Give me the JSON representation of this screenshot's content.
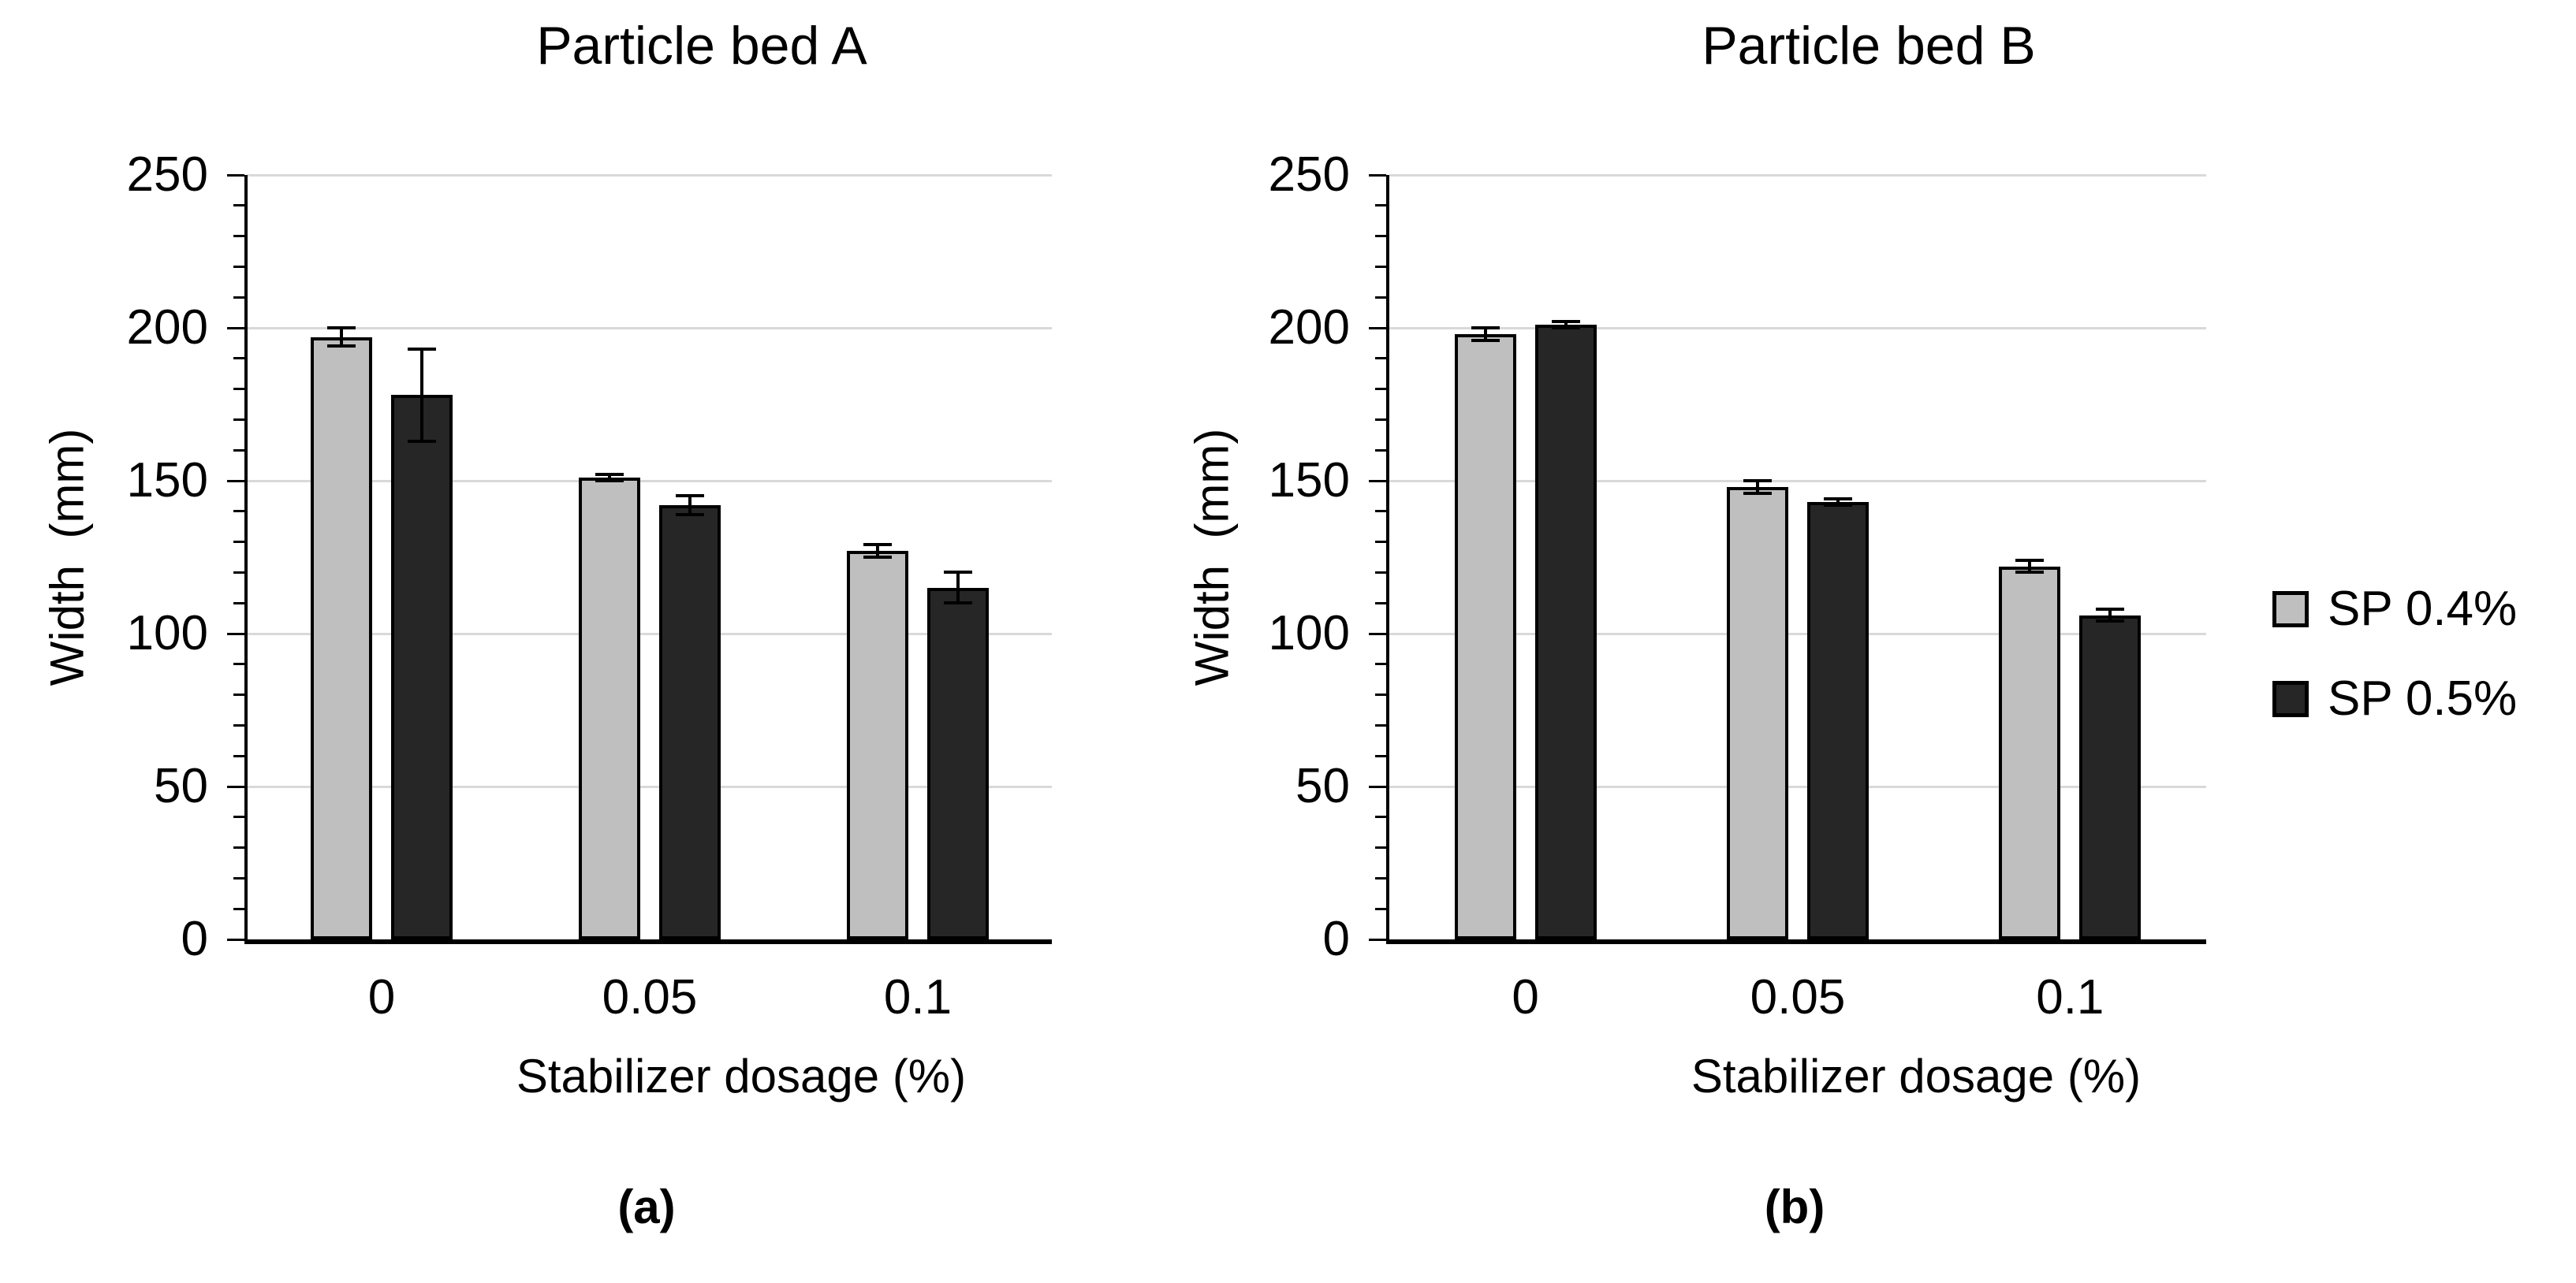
{
  "figure": {
    "background": "#ffffff",
    "colors": {
      "axis": "#000000",
      "gridline": "#d9d9d9",
      "text": "#000000"
    }
  },
  "legend": {
    "position": "right",
    "items": [
      {
        "label": "SP 0.4%",
        "color": "#bfbfbf"
      },
      {
        "label": "SP 0.5%",
        "color": "#262626"
      }
    ]
  },
  "chart_data": [
    {
      "id": "a",
      "type": "bar",
      "title": "Particle bed A",
      "caption": "(a)",
      "xlabel": "Stabilizer dosage (%)",
      "ylabel": "Width  (mm)",
      "ylim": [
        0,
        250
      ],
      "ytick_step": 50,
      "y_minor_step": 10,
      "grid": true,
      "error_bars": true,
      "categories": [
        "0",
        "0.05",
        "0.1"
      ],
      "series": [
        {
          "name": "SP 0.4%",
          "color": "#bfbfbf",
          "values": [
            197,
            151,
            127
          ],
          "errors": [
            3,
            1,
            2
          ]
        },
        {
          "name": "SP 0.5%",
          "color": "#262626",
          "values": [
            178,
            142,
            115
          ],
          "errors": [
            15,
            3,
            5
          ]
        }
      ]
    },
    {
      "id": "b",
      "type": "bar",
      "title": "Particle bed B",
      "caption": "(b)",
      "xlabel": "Stabilizer dosage (%)",
      "ylabel": "Width  (mm)",
      "ylim": [
        0,
        250
      ],
      "ytick_step": 50,
      "y_minor_step": 10,
      "grid": true,
      "error_bars": true,
      "categories": [
        "0",
        "0.05",
        "0.1"
      ],
      "series": [
        {
          "name": "SP 0.4%",
          "color": "#bfbfbf",
          "values": [
            198,
            148,
            122
          ],
          "errors": [
            2,
            2,
            2
          ]
        },
        {
          "name": "SP 0.5%",
          "color": "#262626",
          "values": [
            201,
            143,
            106
          ],
          "errors": [
            1,
            1,
            2
          ]
        }
      ]
    }
  ]
}
